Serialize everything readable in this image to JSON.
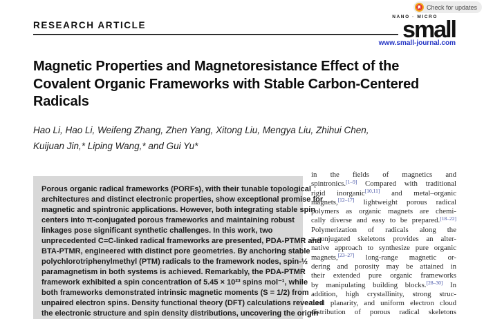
{
  "badge": {
    "label": "Check for updates",
    "icon": "check-for-updates-icon"
  },
  "header": {
    "article_type": "RESEARCH ARTICLE",
    "journal_logo_top": "NANO · MICRO",
    "journal_logo": "small",
    "journal_url": "www.small-journal.com"
  },
  "title": {
    "lines": [
      "Magnetic Properties and Magnetoresistance Effect of the",
      "Covalent Organic Frameworks with Stable Carbon-Centered",
      "Radicals"
    ]
  },
  "authors": {
    "lines": [
      "Hao Li, Hao Li, Weifeng Zhang, Zhen Yang, Xitong Liu, Mengya Liu, Zhihui Chen,",
      "Kuijuan Jin,* Liping Wang,* and Gui Yu*"
    ]
  },
  "abstract": {
    "lines": [
      "Porous organic radical frameworks (PORFs), with their tunable topological",
      "architectures and distinct electronic properties, show exceptional promise for",
      "magnetic and spintronic applications. However, both integrating stable spin",
      "centers into π-conjugated porous frameworks and maintaining robust",
      "linkages pose significant synthetic challenges. In this work, two",
      "unprecedented C=C-linked radical frameworks are presented, PDA-PTMR and",
      "BTA-PTMR, engineered with distinct pore geometries. By anchoring stable",
      "polychlorotriphenylmethyl (PTM) radicals to the framework nodes, spin-½",
      "paramagnetism in both systems is achieved. Remarkably, the PDA-PTMR",
      "framework exhibited a spin concentration of 5.45 × 10²³ spins mol⁻¹, while",
      "both frameworks demonstrated intrinsic magnetic moments (S = 1/2) from",
      "unpaired electron spins. Density functional theory (DFT) calculations revealed",
      "the electronic structure and spin density distributions, uncovering the origin"
    ]
  },
  "intro_column": {
    "lines": [
      [
        [
          "in the fields of magnetics and",
          0
        ]
      ],
      [
        [
          "spintronics.",
          0
        ],
        [
          "[1–9]",
          1
        ],
        [
          " Compared with traditional",
          0
        ]
      ],
      [
        [
          "rigid inorganic",
          0
        ],
        [
          "[10,11]",
          1
        ],
        [
          " and metal–organic",
          0
        ]
      ],
      [
        [
          "magnets,",
          0
        ],
        [
          "[12–17]",
          1
        ],
        [
          " lightweight porous radical",
          0
        ]
      ],
      [
        [
          "polymers as organic magnets are chemi-",
          0
        ]
      ],
      [
        [
          "cally diverse and easy to be prepared.",
          0
        ],
        [
          "[18–22]",
          1
        ]
      ],
      [
        [
          "Polymerization of radicals along the",
          0
        ]
      ],
      [
        [
          "π-conjugated skeletons provides an alter-",
          0
        ]
      ],
      [
        [
          "native approach to synthesize pure organic",
          0
        ]
      ],
      [
        [
          "magnets,",
          0
        ],
        [
          "[23–27]",
          1
        ],
        [
          " long-range magnetic or-",
          0
        ]
      ],
      [
        [
          "dering and porosity may be attained in",
          0
        ]
      ],
      [
        [
          "their extended pure organic frameworks",
          0
        ]
      ],
      [
        [
          "by manipulating building blocks.",
          0
        ],
        [
          "[28–30]",
          1
        ],
        [
          " In",
          0
        ]
      ],
      [
        [
          "addition, high crystallinity, strong struc-",
          0
        ]
      ],
      [
        [
          "tural planarity, and uniform electron cloud",
          0
        ]
      ],
      [
        [
          "distribution of porous radical skeletons",
          0
        ]
      ]
    ]
  },
  "colors": {
    "citation_blue": "#3b4aa2",
    "link_blue": "#2435c4",
    "abstract_bg": "#d8d8d8"
  }
}
